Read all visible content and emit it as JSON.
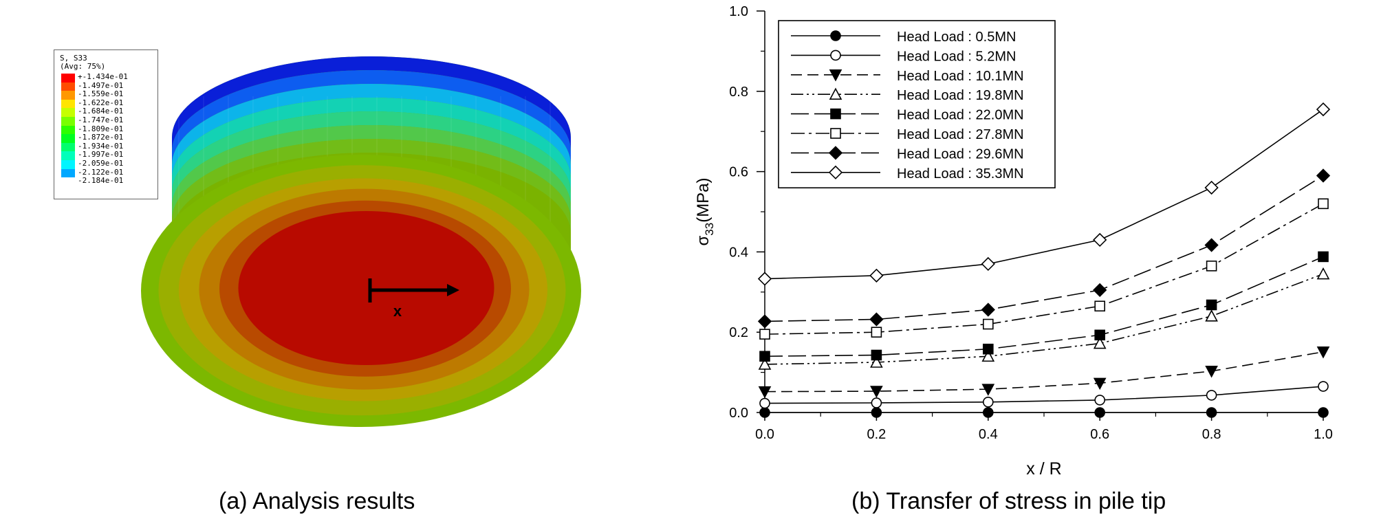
{
  "panel_a": {
    "caption": "(a) Analysis results",
    "legend": {
      "title": "S, S33",
      "subtitle": "(Avg: 75%)",
      "levels": [
        {
          "value": "+-1.434e-01",
          "color": "#ff0000"
        },
        {
          "value": "-1.497e-01",
          "color": "#ff4c00"
        },
        {
          "value": "-1.559e-01",
          "color": "#ff9800"
        },
        {
          "value": "-1.622e-01",
          "color": "#ffe500"
        },
        {
          "value": "-1.684e-01",
          "color": "#c5ff00"
        },
        {
          "value": "-1.747e-01",
          "color": "#79ff00"
        },
        {
          "value": "-1.809e-01",
          "color": "#2cff00"
        },
        {
          "value": "-1.872e-01",
          "color": "#00ff21"
        },
        {
          "value": "-1.934e-01",
          "color": "#00ff6e"
        },
        {
          "value": "-1.997e-01",
          "color": "#00ffba"
        },
        {
          "value": "-2.059e-01",
          "color": "#00f5ff"
        },
        {
          "value": "-2.122e-01",
          "color": "#00a8ff"
        },
        {
          "value": "-2.184e-01",
          "color": "#0000ff"
        }
      ]
    },
    "axis_label": "x",
    "colors": {
      "face_rings": [
        "#7cb800",
        "#9aaf00",
        "#b89f00",
        "#bd7a00",
        "#b84a00",
        "#b80a00"
      ],
      "side_bands": [
        "#0a1fd8",
        "#0d5df0",
        "#0cb4ea",
        "#13d2b4",
        "#2cd284",
        "#52c84a",
        "#72bc18",
        "#7ab300"
      ]
    }
  },
  "panel_b": {
    "caption": "(b) Transfer of stress in pile tip",
    "chart_data": {
      "type": "line",
      "title": "",
      "xlabel": "x / R",
      "ylabel_main": "σ",
      "ylabel_sub": "33",
      "ylabel_unit": "(MPa)",
      "xlim": [
        0.0,
        1.0
      ],
      "ylim": [
        0.0,
        1.0
      ],
      "xticks": [
        "0.0",
        "0.2",
        "0.4",
        "0.6",
        "0.8",
        "1.0"
      ],
      "yticks": [
        "0.0",
        "0.2",
        "0.4",
        "0.6",
        "0.8",
        "1.0"
      ],
      "grid": false,
      "legend_position": "top-left",
      "x": [
        0.0,
        0.2,
        0.4,
        0.6,
        0.8,
        1.0
      ],
      "series": [
        {
          "name": "Head Load : 0.5MN",
          "marker": "circle-filled",
          "dash": "solid",
          "values": [
            0.0,
            0.0,
            0.0,
            0.0,
            0.0,
            0.0
          ]
        },
        {
          "name": "Head Load : 5.2MN",
          "marker": "circle-open",
          "dash": "solid",
          "values": [
            0.023,
            0.024,
            0.026,
            0.031,
            0.043,
            0.065
          ]
        },
        {
          "name": "Head Load : 10.1MN",
          "marker": "triangle-down-filled",
          "dash": "dash",
          "values": [
            0.052,
            0.053,
            0.058,
            0.073,
            0.103,
            0.151
          ]
        },
        {
          "name": "Head Load : 19.8MN",
          "marker": "triangle-up-open",
          "dash": "dashdotdot",
          "values": [
            0.12,
            0.125,
            0.14,
            0.172,
            0.24,
            0.345
          ]
        },
        {
          "name": "Head Load : 22.0MN",
          "marker": "square-filled",
          "dash": "longdash",
          "values": [
            0.14,
            0.143,
            0.158,
            0.193,
            0.268,
            0.388
          ]
        },
        {
          "name": "Head Load : 27.8MN",
          "marker": "square-open",
          "dash": "dashdot",
          "values": [
            0.195,
            0.2,
            0.22,
            0.265,
            0.365,
            0.52
          ]
        },
        {
          "name": "Head Load : 29.6MN",
          "marker": "diamond-filled",
          "dash": "longdash",
          "values": [
            0.227,
            0.232,
            0.256,
            0.305,
            0.417,
            0.59
          ]
        },
        {
          "name": "Head Load : 35.3MN",
          "marker": "diamond-open",
          "dash": "solid",
          "values": [
            0.333,
            0.341,
            0.37,
            0.43,
            0.56,
            0.755
          ]
        }
      ]
    }
  }
}
